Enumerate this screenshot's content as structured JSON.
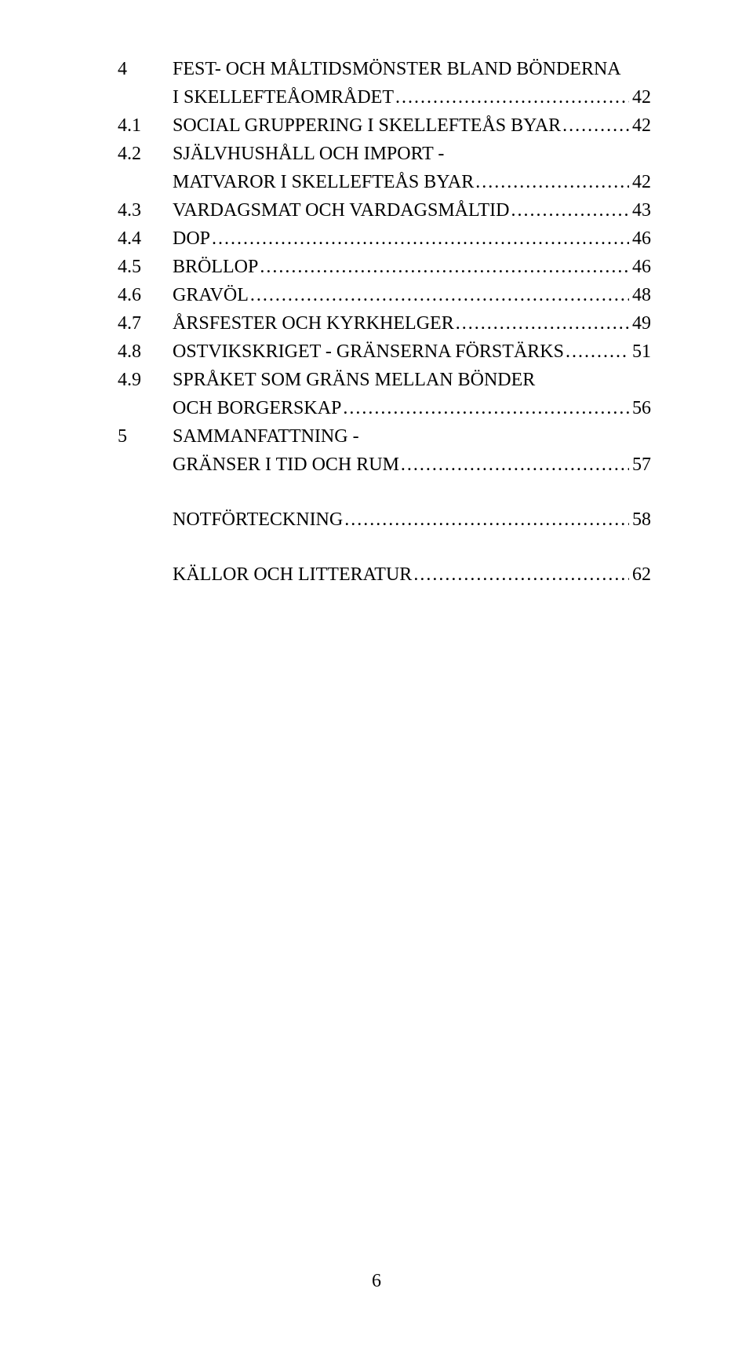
{
  "toc": [
    {
      "num": "4",
      "title_lines": [
        "FEST- OCH MÅLTIDSMÖNSTER BLAND BÖNDERNA",
        "I SKELLEFTEÅOMRÅDET"
      ],
      "page": "42",
      "spaceAfter": 0
    },
    {
      "num": "4.1",
      "title_lines": [
        "SOCIAL GRUPPERING I SKELLEFTEÅS BYAR"
      ],
      "page": "42",
      "spaceAfter": 0
    },
    {
      "num": "4.2",
      "title_lines": [
        "SJÄLVHUSHÅLL OCH IMPORT -",
        "MATVAROR I SKELLEFTEÅS BYAR"
      ],
      "page": "42",
      "spaceAfter": 0
    },
    {
      "num": "4.3",
      "title_lines": [
        "VARDAGSMAT OCH VARDAGSMÅLTID"
      ],
      "page": "43",
      "spaceAfter": 0
    },
    {
      "num": "4.4",
      "title_lines": [
        "DOP"
      ],
      "page": "46",
      "spaceAfter": 0
    },
    {
      "num": "4.5",
      "title_lines": [
        "BRÖLLOP"
      ],
      "page": "46",
      "spaceAfter": 0
    },
    {
      "num": "4.6",
      "title_lines": [
        "GRAVÖL"
      ],
      "page": "48",
      "spaceAfter": 0
    },
    {
      "num": "4.7",
      "title_lines": [
        "ÅRSFESTER OCH KYRKHELGER"
      ],
      "page": "49",
      "spaceAfter": 0
    },
    {
      "num": "4.8",
      "title_lines": [
        "OSTVIKSKRIGET - GRÄNSERNA FÖRSTÄRKS"
      ],
      "page": "51",
      "spaceAfter": 0
    },
    {
      "num": "4.9",
      "title_lines": [
        "SPRÅKET SOM GRÄNS MELLAN BÖNDER",
        "OCH BORGERSKAP"
      ],
      "page": "56",
      "spaceAfter": 0
    },
    {
      "num": "5",
      "title_lines": [
        "SAMMANFATTNING -",
        "GRÄNSER I TID OCH RUM"
      ],
      "page": "57",
      "spaceAfter": 34
    },
    {
      "num": "",
      "title_lines": [
        "NOTFÖRTECKNING"
      ],
      "page": "58",
      "spaceAfter": 34
    },
    {
      "num": "",
      "title_lines": [
        "KÄLLOR OCH LITTERATUR"
      ],
      "page": "62",
      "spaceAfter": 0
    }
  ],
  "leader_char": ".",
  "page_number": "6"
}
